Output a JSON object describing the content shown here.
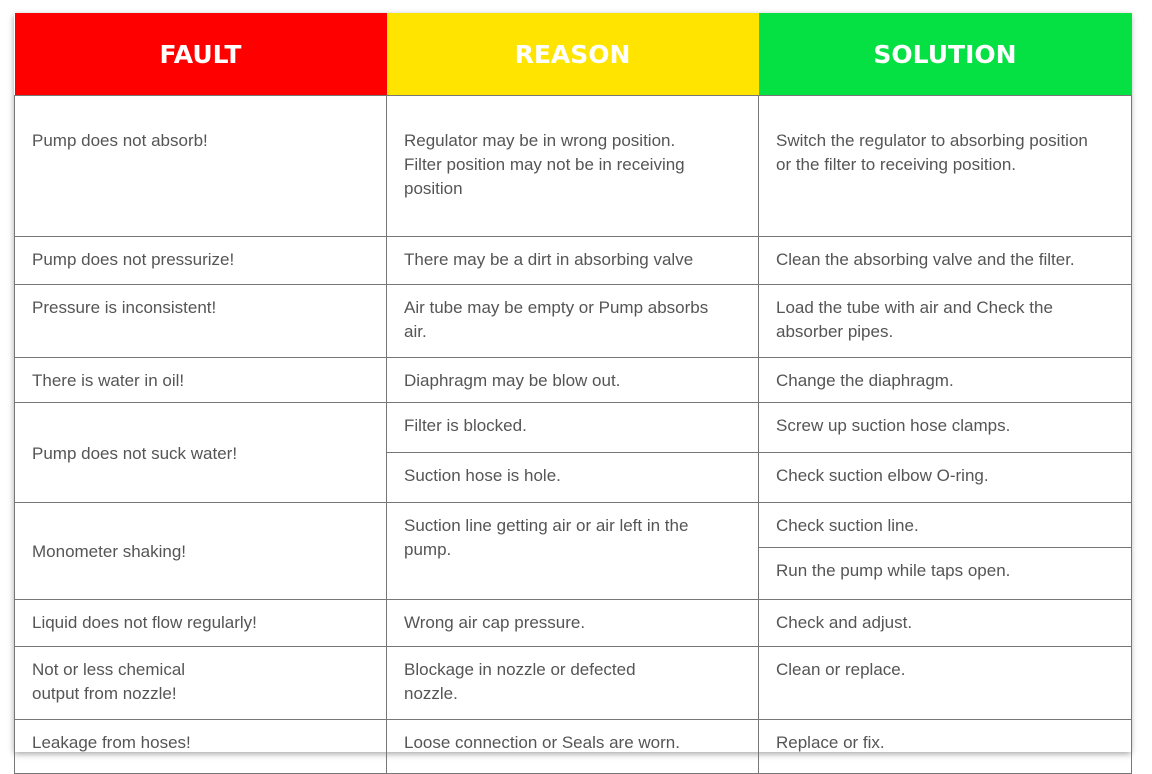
{
  "headers": {
    "fault": "FAULT",
    "reason": "REASON",
    "solution": "SOLUTION"
  },
  "colors": {
    "fault": "#ff0000",
    "reason": "#ffe400",
    "solution": "#05e043"
  },
  "rows": [
    {
      "fault": "Pump does not absorb!",
      "reason": "Regulator may be in wrong position.\nFilter position may not be in receiving\nposition",
      "solution": "Switch the regulator to absorbing position\nor the filter to receiving position."
    },
    {
      "fault": "Pump does not pressurize!",
      "reason": "There may be a dirt in absorbing valve",
      "solution": "Clean the absorbing valve and the filter."
    },
    {
      "fault": "Pressure is inconsistent!",
      "reason": "Air tube may be empty or Pump absorbs\nair.",
      "solution": "Load the tube with air and Check the\nabsorber pipes."
    },
    {
      "fault": "There is water in oil!",
      "reason": "Diaphragm may be blow out.",
      "solution": "Change the diaphragm."
    },
    {
      "fault": "Pump does not suck water!",
      "reasons": [
        "Filter is blocked.",
        "Suction hose is hole."
      ],
      "solutions": [
        "Screw up suction hose clamps.",
        "Check suction elbow O-ring."
      ]
    },
    {
      "fault": "Monometer shaking!",
      "reason": "Suction line getting air or air left in the\npump.",
      "solutions": [
        "Check suction line.",
        "Run the pump while taps open."
      ]
    },
    {
      "fault": "Liquid does not flow regularly!",
      "reason": "Wrong air cap pressure.",
      "solution": "Check and adjust."
    },
    {
      "fault": "Not or less chemical\noutput from nozzle!",
      "reason": "Blockage in nozzle or defected\nnozzle.",
      "solution": "Clean or replace."
    },
    {
      "fault": "Leakage from hoses!",
      "reason": "Loose connection or Seals are worn.",
      "solution": "Replace or fix."
    }
  ]
}
